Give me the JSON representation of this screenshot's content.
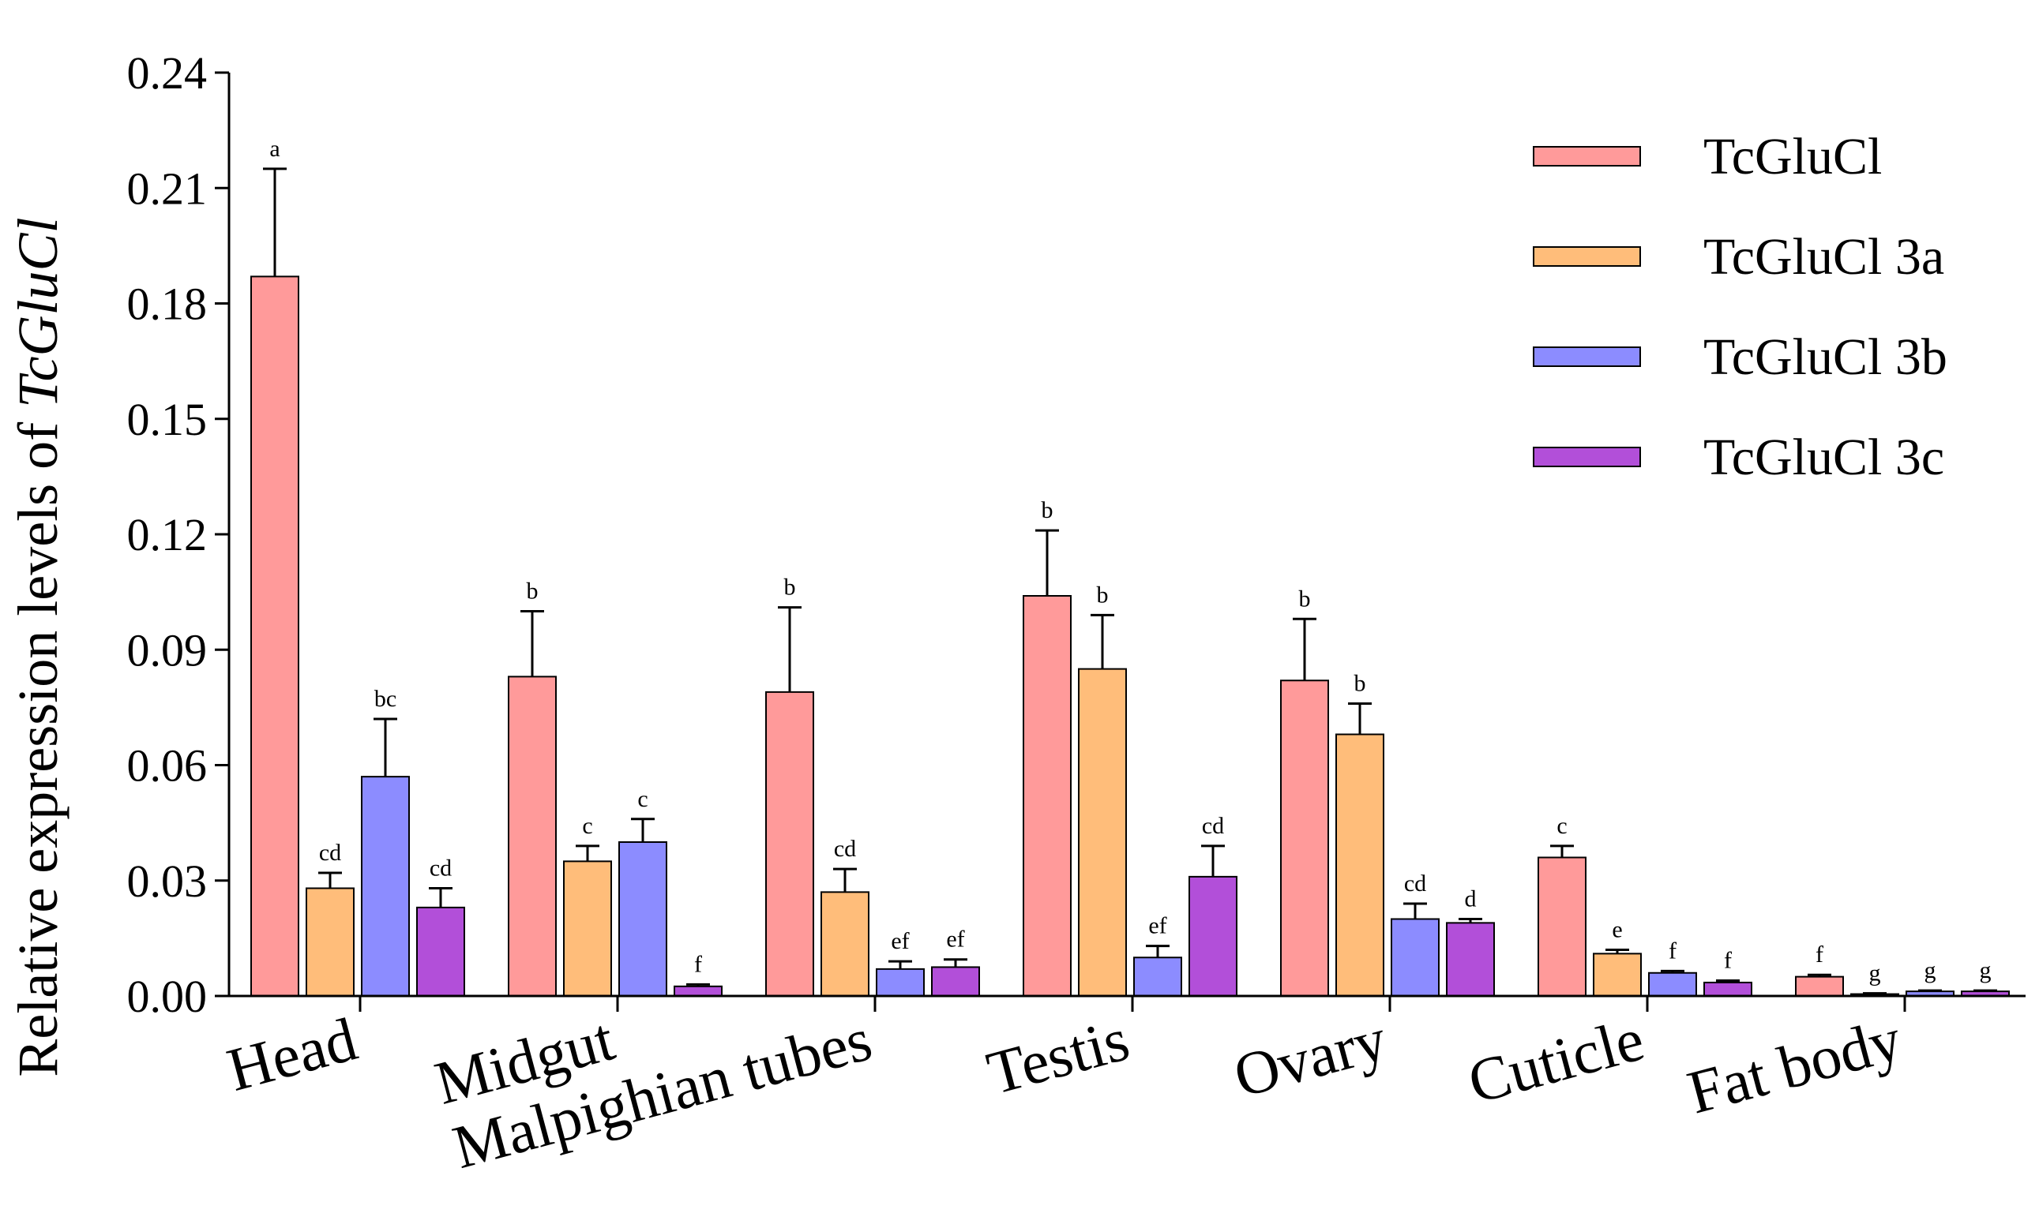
{
  "chart_data": {
    "type": "bar",
    "title": "",
    "xlabel": "",
    "ylabel_prefix": "Relative expression levels of ",
    "ylabel_emphasis": "TcGluCl",
    "ylim": [
      0,
      0.24
    ],
    "yticks": [
      0.0,
      0.03,
      0.06,
      0.09,
      0.12,
      0.15,
      0.18,
      0.21,
      0.24
    ],
    "ytick_labels": [
      "0.00",
      "0.03",
      "0.06",
      "0.09",
      "0.12",
      "0.15",
      "0.18",
      "0.21",
      "0.24"
    ],
    "legend_position": "top-right",
    "categories": [
      "Head",
      "Midgut",
      "Malpighian tubes",
      "Testis",
      "Ovary",
      "Cuticle",
      "Fat body"
    ],
    "series": [
      {
        "name": "TcGluCl",
        "color": "#ff9a9a",
        "values": [
          0.187,
          0.083,
          0.079,
          0.104,
          0.082,
          0.036,
          0.005
        ],
        "errors": [
          0.028,
          0.017,
          0.022,
          0.017,
          0.016,
          0.003,
          0.0005
        ],
        "labels": [
          "a",
          "b",
          "b",
          "b",
          "b",
          "c",
          "f"
        ]
      },
      {
        "name": "TcGluCl 3a",
        "color": "#ffbd7a",
        "values": [
          0.028,
          0.035,
          0.027,
          0.085,
          0.068,
          0.011,
          0.0005
        ],
        "errors": [
          0.004,
          0.004,
          0.006,
          0.014,
          0.008,
          0.001,
          0.0002
        ],
        "labels": [
          "cd",
          "c",
          "cd",
          "b",
          "b",
          "e",
          "g"
        ]
      },
      {
        "name": "TcGluCl 3b",
        "color": "#8c8cff",
        "values": [
          0.057,
          0.04,
          0.007,
          0.01,
          0.02,
          0.006,
          0.0012
        ],
        "errors": [
          0.015,
          0.006,
          0.002,
          0.003,
          0.004,
          0.0005,
          0.0002
        ],
        "labels": [
          "bc",
          "c",
          "ef",
          "ef",
          "cd",
          "f",
          "g"
        ]
      },
      {
        "name": "TcGluCl 3c",
        "color": "#b24fd9",
        "values": [
          0.023,
          0.0025,
          0.0075,
          0.031,
          0.019,
          0.0035,
          0.0012
        ],
        "errors": [
          0.005,
          0.0005,
          0.002,
          0.008,
          0.001,
          0.0005,
          0.0002
        ],
        "labels": [
          "cd",
          "f",
          "ef",
          "cd",
          "d",
          "f",
          "g"
        ]
      }
    ]
  }
}
